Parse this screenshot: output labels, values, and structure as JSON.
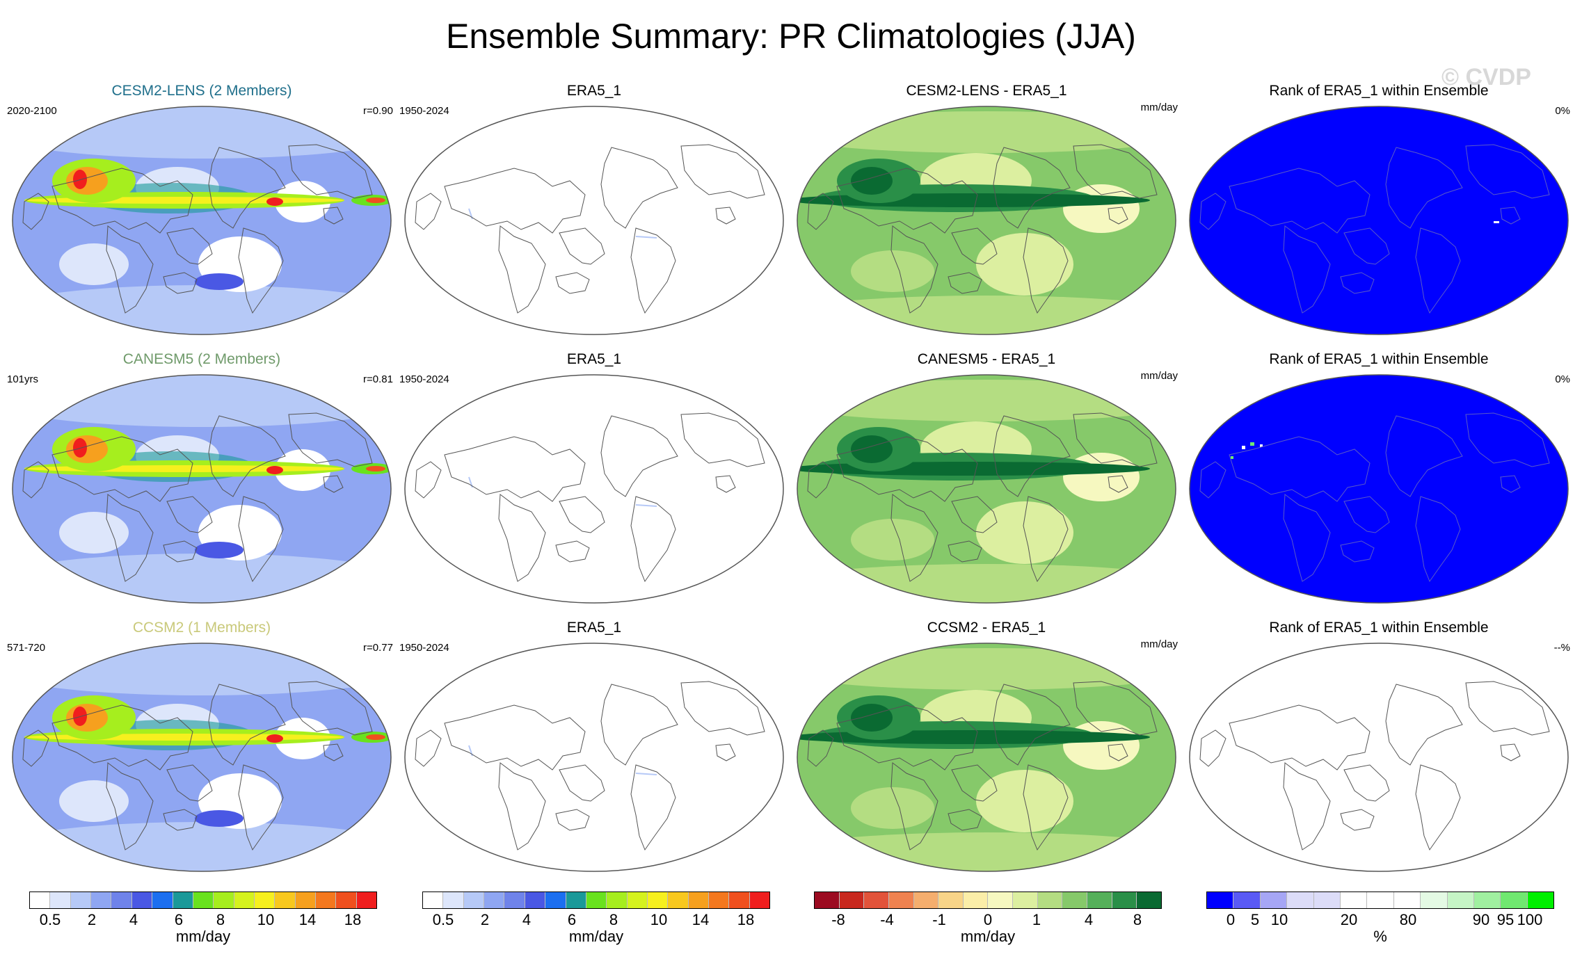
{
  "title": "Ensemble Summary: PR Climatologies (JJA)",
  "watermark": "© CVDP",
  "rows": [
    {
      "model": {
        "title": "CESM2-LENS (2 Members)",
        "color": "#1f6f8b",
        "left": "2020-2100",
        "right": "r=0.90"
      },
      "obs": {
        "title": "ERA5_1",
        "left": "1950-2024"
      },
      "diff": {
        "title": "CESM2-LENS - ERA5_1",
        "right": "mm/day"
      },
      "rank": {
        "title": "Rank of ERA5_1 within Ensemble",
        "right": "0%",
        "fill": "blue"
      }
    },
    {
      "model": {
        "title": "CANESM5 (2 Members)",
        "color": "#6f9a6a",
        "left": "101yrs",
        "right": "r=0.81"
      },
      "obs": {
        "title": "ERA5_1",
        "left": "1950-2024"
      },
      "diff": {
        "title": "CANESM5 - ERA5_1",
        "right": "mm/day"
      },
      "rank": {
        "title": "Rank of ERA5_1 within Ensemble",
        "right": "0%",
        "fill": "blue"
      }
    },
    {
      "model": {
        "title": "CCSM2 (1 Members)",
        "color": "#c9c97a",
        "left": "571-720",
        "right": "r=0.77"
      },
      "obs": {
        "title": "ERA5_1",
        "left": "1950-2024"
      },
      "diff": {
        "title": "CCSM2 - ERA5_1",
        "right": "mm/day"
      },
      "rank": {
        "title": "Rank of ERA5_1 within Ensemble",
        "right": "--%",
        "fill": "none"
      }
    }
  ],
  "colorbars": [
    {
      "name": "pr",
      "unit": "mm/day",
      "colors": [
        "#ffffff",
        "#dde6fb",
        "#b6c9f7",
        "#8fa6f2",
        "#6f83ea",
        "#4a58e4",
        "#1c6ff0",
        "#1a9999",
        "#69e21e",
        "#a6ee1e",
        "#d5f21e",
        "#f6f01e",
        "#f8c81e",
        "#f6a01e",
        "#f4781e",
        "#f0501e",
        "#f01e1e"
      ],
      "ticks": [
        "0.5",
        "2",
        "4",
        "6",
        "8",
        "10",
        "14",
        "18"
      ]
    },
    {
      "name": "pr-obs",
      "unit": "mm/day",
      "colors": [
        "#ffffff",
        "#dde6fb",
        "#b6c9f7",
        "#8fa6f2",
        "#6f83ea",
        "#4a58e4",
        "#1c6ff0",
        "#1a9999",
        "#69e21e",
        "#a6ee1e",
        "#d5f21e",
        "#f6f01e",
        "#f8c81e",
        "#f6a01e",
        "#f4781e",
        "#f0501e",
        "#f01e1e"
      ],
      "ticks": [
        "0.5",
        "2",
        "4",
        "6",
        "8",
        "10",
        "14",
        "18"
      ]
    },
    {
      "name": "diff",
      "unit": "mm/day",
      "colors": [
        "#9c0b21",
        "#c8281e",
        "#e2533a",
        "#ef8250",
        "#f5ae6e",
        "#f8d488",
        "#fbeea8",
        "#f6f8c0",
        "#dcefa0",
        "#b4dd82",
        "#86c96a",
        "#55b05a",
        "#2a8f48",
        "#0a6a32"
      ],
      "ticks": [
        "-8",
        "-4",
        "-1",
        "0",
        "1",
        "4",
        "8"
      ]
    },
    {
      "name": "rank",
      "unit": "%",
      "colors": [
        "#0000ff",
        "#5a5af5",
        "#a6a6f5",
        "#dcdcf8",
        "#dcdcf8",
        "#ffffff",
        "#ffffff",
        "#ffffff",
        "#e4fae4",
        "#c6f5c6",
        "#a0f0a0",
        "#70e870",
        "#00f000"
      ],
      "ticks": [
        "0",
        "5",
        "10",
        "20",
        "80",
        "90",
        "95",
        "100"
      ]
    }
  ]
}
